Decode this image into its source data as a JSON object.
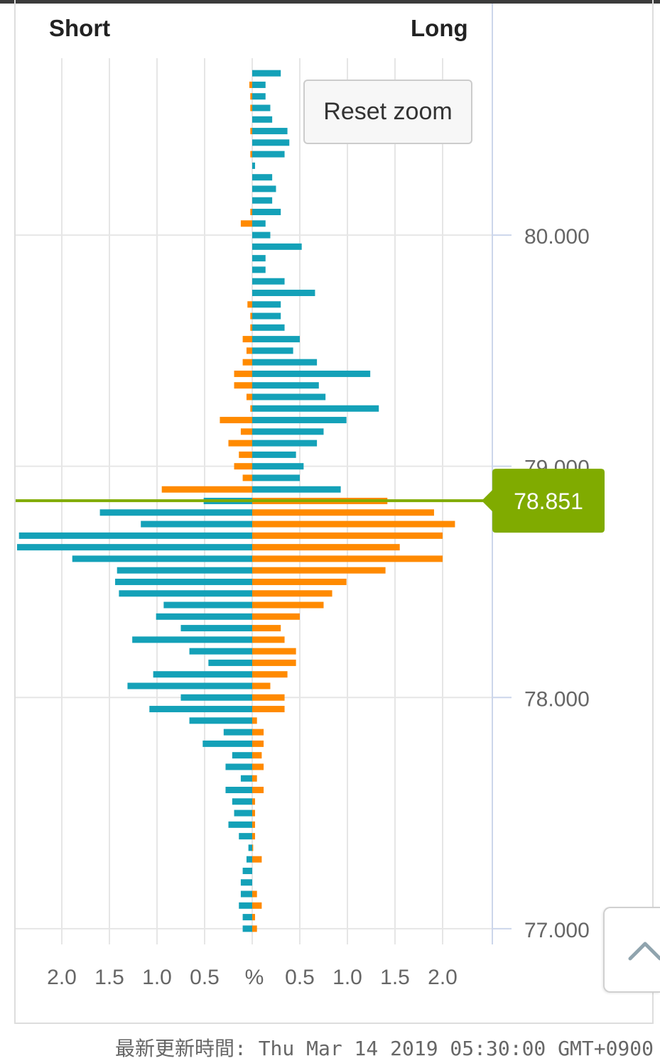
{
  "chart_data": {
    "type": "bar",
    "orientation": "horizontal",
    "y": [
      80.7,
      80.65,
      80.6,
      80.55,
      80.5,
      80.45,
      80.4,
      80.35,
      80.3,
      80.25,
      80.2,
      80.15,
      80.1,
      80.05,
      80.0,
      79.95,
      79.9,
      79.85,
      79.8,
      79.75,
      79.7,
      79.65,
      79.6,
      79.55,
      79.5,
      79.45,
      79.4,
      79.35,
      79.3,
      79.25,
      79.2,
      79.15,
      79.1,
      79.05,
      79.0,
      78.95,
      78.9,
      78.85,
      78.8,
      78.75,
      78.7,
      78.65,
      78.6,
      78.55,
      78.5,
      78.45,
      78.4,
      78.35,
      78.3,
      78.25,
      78.2,
      78.15,
      78.1,
      78.05,
      78.0,
      77.95,
      77.9,
      77.85,
      77.8,
      77.75,
      77.7,
      77.65,
      77.6,
      77.55,
      77.5,
      77.45,
      77.4,
      77.35,
      77.3,
      77.25,
      77.2,
      77.15,
      77.1,
      77.05,
      77.0
    ],
    "series": [
      {
        "name": "Short",
        "values": [
          0,
          0.03,
          0.02,
          0.02,
          0,
          0.02,
          0,
          0.02,
          0,
          0,
          0,
          0,
          0.02,
          0.12,
          0,
          0,
          0,
          0,
          0,
          0,
          0.05,
          0.02,
          0.02,
          0.1,
          0.06,
          0.1,
          0.19,
          0.19,
          0.06,
          0.02,
          0.34,
          0.12,
          0.25,
          0.14,
          0.19,
          0.1,
          0.95,
          0.51,
          1.6,
          1.17,
          2.45,
          2.47,
          1.89,
          1.42,
          1.44,
          1.4,
          0.93,
          1.01,
          0.75,
          1.26,
          0.66,
          0.46,
          1.04,
          1.31,
          0.75,
          1.08,
          0.66,
          0.3,
          0.52,
          0.21,
          0.28,
          0.12,
          0.28,
          0.21,
          0.19,
          0.25,
          0.14,
          0.04,
          0.06,
          0.1,
          0.12,
          0.12,
          0.14,
          0.1,
          0.1
        ]
      },
      {
        "name": "Long",
        "values": [
          0.3,
          0.14,
          0.14,
          0.19,
          0.21,
          0.37,
          0.39,
          0.34,
          0.03,
          0.21,
          0.25,
          0.21,
          0.3,
          0.14,
          0.19,
          0.52,
          0.14,
          0.14,
          0.34,
          0.66,
          0.3,
          0.3,
          0.34,
          0.5,
          0.43,
          0.68,
          1.24,
          0.7,
          0.77,
          1.33,
          0.99,
          0.75,
          0.68,
          0.46,
          0.54,
          0.5,
          0.93,
          1.42,
          1.91,
          2.13,
          2.0,
          1.55,
          2.0,
          1.4,
          0.99,
          0.84,
          0.75,
          0.5,
          0.3,
          0.34,
          0.46,
          0.46,
          0.37,
          0.19,
          0.34,
          0.34,
          0.05,
          0.12,
          0.12,
          0.1,
          0.12,
          0.05,
          0.12,
          0.03,
          0.03,
          0.03,
          0.03,
          0.01,
          0.1,
          0,
          0,
          0.05,
          0.1,
          0.03,
          0.05
        ]
      }
    ],
    "current_price": 78.851,
    "current_price_label": "78.851",
    "x_tick_values": [
      0.5,
      1.0,
      1.5,
      2.0
    ],
    "x_tick_labels": [
      "0.5",
      "1.0",
      "1.5",
      "2.0"
    ],
    "x_center_label": "%",
    "xlim": [
      0,
      2.5
    ],
    "y_ticks": [
      80,
      79,
      78,
      77
    ],
    "y_tick_labels": [
      "80.000",
      "79.000",
      "78.000",
      "77.000"
    ],
    "ylim": [
      76.932,
      80.765
    ],
    "grid": true
  },
  "buttons": {
    "reset_zoom": "Reset zoom"
  },
  "footer": {
    "last_updated": "最新更新時間: Thu Mar 14 2019 05:30:00 GMT+0900"
  },
  "icons": {
    "scroll_to_top": "chevron-up-icon"
  },
  "colors": {
    "bar_teal": "#14a1b8",
    "bar_orange": "#ff8a00",
    "current_price": "#80ab00",
    "gridline": "#e6e6e6",
    "axis_line": "#ccd6eb",
    "tick_label": "#666666"
  }
}
